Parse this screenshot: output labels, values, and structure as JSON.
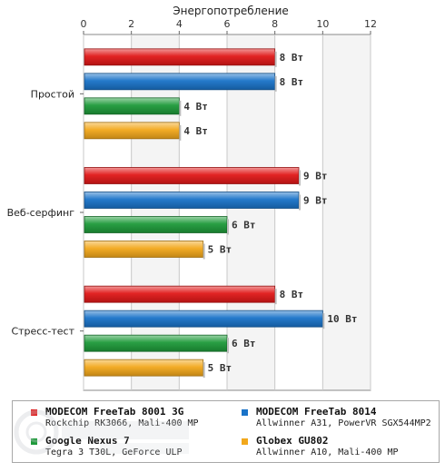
{
  "chart_data": {
    "type": "bar",
    "orientation": "horizontal",
    "title": "Энергопотребление",
    "categories": [
      "Простой",
      "Веб-серфинг",
      "Стресс-тест"
    ],
    "series": [
      {
        "name": "MODECOM FreeTab 8001 3G",
        "color": "#e01818",
        "values": [
          8,
          9,
          8
        ],
        "labels": [
          "8 Вт",
          "9 Вт",
          "8 Вт"
        ]
      },
      {
        "name": "MODECOM FreeTab 8014",
        "color": "#1a73c8",
        "values": [
          8,
          9,
          10
        ],
        "labels": [
          "8 Вт",
          "9 Вт",
          "10 Вт"
        ]
      },
      {
        "name": "Google Nexus 7",
        "color": "#1e9a3a",
        "values": [
          4,
          6,
          6
        ],
        "labels": [
          "4 Вт",
          "6 Вт",
          "6 Вт"
        ]
      },
      {
        "name": "Globex GU802",
        "color": "#f2a81c",
        "values": [
          4,
          5,
          5
        ],
        "labels": [
          "4 Вт",
          "5 Вт",
          "5 Вт"
        ]
      }
    ],
    "xlim": [
      0,
      12
    ],
    "xticks": [
      "0",
      "2",
      "4",
      "6",
      "8",
      "10",
      "12"
    ],
    "grid": true,
    "legend_position": "bottom"
  },
  "legend": {
    "items": [
      {
        "name": "MODECOM FreeTab 8001 3G",
        "desc": "Rockchip RK3066, Mali-400 MP",
        "color": "#e01818"
      },
      {
        "name": "MODECOM FreeTab 8014",
        "desc": "Allwinner A31, PowerVR SGX544MP2",
        "color": "#1a73c8"
      },
      {
        "name": "Google Nexus 7",
        "desc": "Tegra 3 T30L, GeForce ULP",
        "color": "#1e9a3a"
      },
      {
        "name": "Globex GU802",
        "desc": "Allwinner A10, Mali-400 MP",
        "color": "#f2a81c"
      }
    ]
  }
}
